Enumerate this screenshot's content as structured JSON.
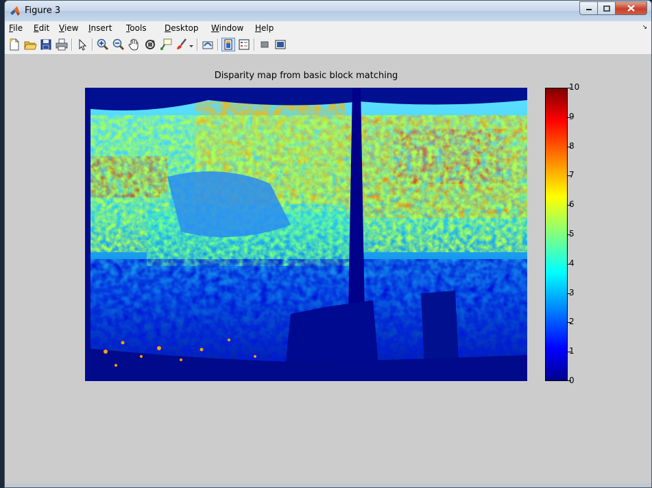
{
  "window": {
    "title": "Figure 3",
    "icon": "matlab-logo-icon"
  },
  "menubar": {
    "items": [
      "File",
      "Edit",
      "View",
      "Insert",
      "Tools",
      "Desktop",
      "Window",
      "Help"
    ],
    "mnemonics": [
      "F",
      "E",
      "V",
      "I",
      "T",
      "D",
      "W",
      "H"
    ]
  },
  "toolbar": {
    "icons": [
      "new-figure-icon",
      "open-file-icon",
      "save-icon",
      "print-icon",
      "edit-plot-icon",
      "zoom-in-icon",
      "zoom-out-icon",
      "pan-icon",
      "rotate-3d-icon",
      "data-cursor-icon",
      "brush-icon",
      "link-plot-icon",
      "insert-colorbar-icon",
      "insert-legend-icon",
      "hide-plot-tools-icon",
      "show-plot-tools-icon"
    ],
    "pressed": "insert-colorbar-icon"
  },
  "chart_data": {
    "type": "heatmap",
    "title": "Disparity map from basic block matching",
    "colormap": "jet",
    "colorbar": {
      "position": "right",
      "range": [
        0,
        10
      ],
      "ticks": [
        "0",
        "1",
        "2",
        "3",
        "4",
        "5",
        "6",
        "7",
        "8",
        "9",
        "10"
      ]
    },
    "axis_visible": false
  }
}
